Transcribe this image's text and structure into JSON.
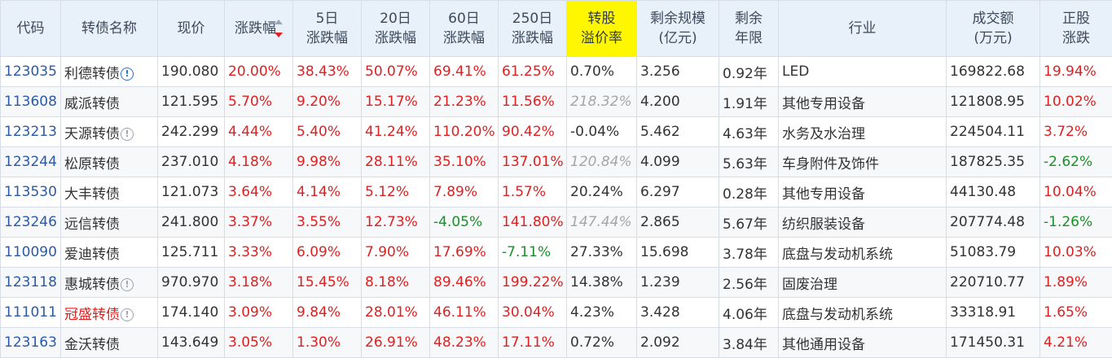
{
  "headers": {
    "code": "代码",
    "name": "转债名称",
    "price": "现价",
    "change": "涨跌幅",
    "d5_l1": "5日",
    "d5_l2": "涨跌幅",
    "d20_l1": "20日",
    "d20_l2": "涨跌幅",
    "d60_l1": "60日",
    "d60_l2": "涨跌幅",
    "d250_l1": "250日",
    "d250_l2": "涨跌幅",
    "premium_l1": "转股",
    "premium_l2": "溢价率",
    "remaining_l1": "剩余规模",
    "remaining_l2": "(亿元)",
    "years_l1": "剩余",
    "years_l2": "年限",
    "industry": "行业",
    "volume_l1": "成交额",
    "volume_l2": "(万元)",
    "stock_l1": "正股",
    "stock_l2": "涨跌"
  },
  "rows": [
    {
      "code": "123035",
      "name": "利德转债",
      "icon": "info-icon-blue",
      "price": "190.080",
      "change": "20.00%",
      "d5": "38.43%",
      "d20": "50.07%",
      "d60": "69.41%",
      "d250": "61.25%",
      "premium": "0.70%",
      "remaining": "3.256",
      "years": "0.92年",
      "industry": "LED",
      "volume": "169822.68",
      "stock": "19.94%"
    },
    {
      "code": "113608",
      "name": "威派转债",
      "icon": "",
      "price": "121.595",
      "change": "5.70%",
      "d5": "9.20%",
      "d20": "15.17%",
      "d60": "21.23%",
      "d250": "11.56%",
      "premium": "218.32%",
      "remaining": "4.200",
      "years": "1.91年",
      "industry": "其他专用设备",
      "volume": "121808.95",
      "stock": "10.02%"
    },
    {
      "code": "123213",
      "name": "天源转债",
      "icon": "info-icon",
      "price": "242.299",
      "change": "4.44%",
      "d5": "5.40%",
      "d20": "41.24%",
      "d60": "110.20%",
      "d250": "90.42%",
      "premium": "-0.04%",
      "remaining": "5.462",
      "years": "4.63年",
      "industry": "水务及水治理",
      "volume": "224504.11",
      "stock": "3.72%"
    },
    {
      "code": "123244",
      "name": "松原转债",
      "icon": "",
      "price": "237.010",
      "change": "4.18%",
      "d5": "9.98%",
      "d20": "28.11%",
      "d60": "35.10%",
      "d250": "137.01%",
      "premium": "120.84%",
      "remaining": "4.099",
      "years": "5.63年",
      "industry": "车身附件及饰件",
      "volume": "187825.35",
      "stock": "-2.62%"
    },
    {
      "code": "113530",
      "name": "大丰转债",
      "icon": "",
      "price": "121.073",
      "change": "3.64%",
      "d5": "4.14%",
      "d20": "5.12%",
      "d60": "7.89%",
      "d250": "1.57%",
      "premium": "20.24%",
      "remaining": "6.297",
      "years": "0.28年",
      "industry": "其他专用设备",
      "volume": "44130.48",
      "stock": "10.04%"
    },
    {
      "code": "123246",
      "name": "远信转债",
      "icon": "",
      "price": "241.800",
      "change": "3.37%",
      "d5": "3.55%",
      "d20": "12.73%",
      "d60": "-4.05%",
      "d250": "141.80%",
      "premium": "147.44%",
      "remaining": "2.865",
      "years": "5.67年",
      "industry": "纺织服装设备",
      "volume": "207774.48",
      "stock": "-1.26%"
    },
    {
      "code": "110090",
      "name": "爱迪转债",
      "icon": "",
      "price": "125.711",
      "change": "3.33%",
      "d5": "6.09%",
      "d20": "7.90%",
      "d60": "17.69%",
      "d250": "-7.11%",
      "premium": "27.33%",
      "remaining": "15.698",
      "years": "3.78年",
      "industry": "底盘与发动机系统",
      "volume": "51083.79",
      "stock": "10.03%"
    },
    {
      "code": "123118",
      "name": "惠城转债",
      "icon": "info-icon",
      "price": "970.970",
      "change": "3.18%",
      "d5": "15.45%",
      "d20": "8.18%",
      "d60": "89.46%",
      "d250": "199.22%",
      "premium": "14.38%",
      "remaining": "1.239",
      "years": "2.56年",
      "industry": "固废治理",
      "volume": "220710.77",
      "stock": "1.89%"
    },
    {
      "code": "111011",
      "name": "冠盛转债",
      "icon": "info-icon",
      "price": "174.140",
      "change": "3.09%",
      "d5": "9.84%",
      "d20": "28.01%",
      "d60": "46.11%",
      "d250": "30.04%",
      "premium": "4.23%",
      "remaining": "3.428",
      "years": "4.06年",
      "industry": "底盘与发动机系统",
      "volume": "33318.91",
      "stock": "1.65%"
    },
    {
      "code": "123163",
      "name": "金沃转债",
      "icon": "",
      "price": "143.649",
      "change": "3.05%",
      "d5": "1.30%",
      "d20": "26.91%",
      "d60": "48.23%",
      "d250": "17.11%",
      "premium": "0.72%",
      "remaining": "2.092",
      "years": "3.84年",
      "industry": "其他通用设备",
      "volume": "171450.31",
      "stock": "4.21%"
    }
  ],
  "colors": {
    "up": "#e02020",
    "down": "#1d8f2a",
    "code": "#2a5aa8",
    "highlight": "#fff700",
    "header_bg": "#e8f0fa"
  }
}
